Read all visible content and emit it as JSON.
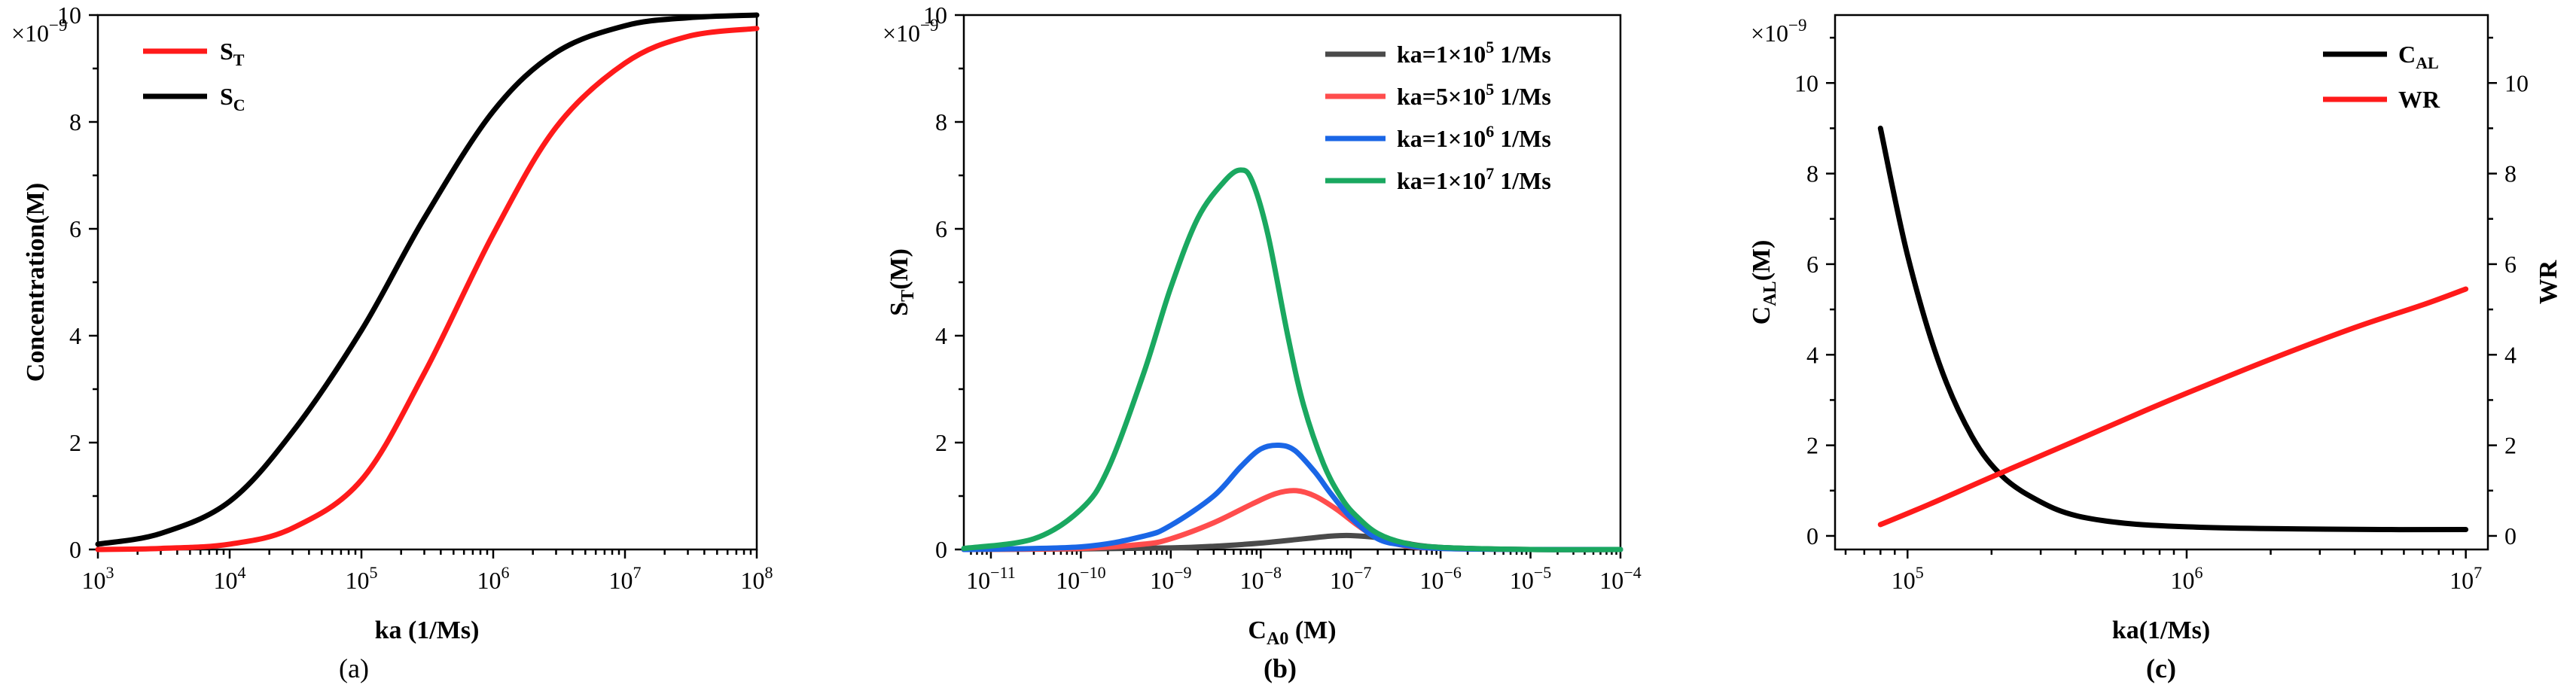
{
  "chart_data": [
    {
      "type": "line",
      "id": "a",
      "subplot_label": "(a)",
      "xlabel": "ka (1/Ms)",
      "ylabel": "Concentration(M)",
      "y_multiplier": "×10",
      "y_multiplier_exp": "−9",
      "xscale": "log",
      "xlim": [
        1000.0,
        100000000.0
      ],
      "ylim": [
        0,
        10
      ],
      "x_ticks": [
        {
          "value": 1000.0,
          "base": "10",
          "exp": "3"
        },
        {
          "value": 10000.0,
          "base": "10",
          "exp": "4"
        },
        {
          "value": 100000.0,
          "base": "10",
          "exp": "5"
        },
        {
          "value": 1000000.0,
          "base": "10",
          "exp": "6"
        },
        {
          "value": 10000000.0,
          "base": "10",
          "exp": "7"
        },
        {
          "value": 100000000.0,
          "base": "10",
          "exp": "8"
        }
      ],
      "y_ticks": [
        "0",
        "2",
        "4",
        "6",
        "8",
        "10"
      ],
      "legend": "top-left",
      "series": [
        {
          "name": "S",
          "sub": "T",
          "color": "#ff1a1a",
          "x": [
            1000.0,
            3000.0,
            10000.0,
            30000.0,
            100000.0,
            300000.0,
            1000000.0,
            3000000.0,
            10000000.0,
            30000000.0,
            100000000.0
          ],
          "y": [
            0,
            0.02,
            0.1,
            0.4,
            1.3,
            3.3,
            5.9,
            7.9,
            9.1,
            9.6,
            9.75
          ]
        },
        {
          "name": "S",
          "sub": "C",
          "color": "#000000",
          "x": [
            1000.0,
            3000.0,
            10000.0,
            30000.0,
            100000.0,
            300000.0,
            1000000.0,
            3000000.0,
            10000000.0,
            30000000.0,
            100000000.0
          ],
          "y": [
            0.1,
            0.3,
            0.9,
            2.2,
            4.1,
            6.2,
            8.2,
            9.3,
            9.8,
            9.95,
            10
          ]
        }
      ]
    },
    {
      "type": "line",
      "id": "b",
      "subplot_label": "(b)",
      "xlabel": "C",
      "xlabel_sub": "A0",
      "xlabel_unit": " (M)",
      "ylabel": "S",
      "ylabel_sub": "T",
      "ylabel_unit": "(M)",
      "y_multiplier": "×10",
      "y_multiplier_exp": "−9",
      "xscale": "log",
      "xlim": [
        5e-12,
        0.0001
      ],
      "ylim": [
        0,
        10
      ],
      "x_ticks": [
        {
          "value": 1e-11,
          "base": "10",
          "exp": "−11"
        },
        {
          "value": 1e-10,
          "base": "10",
          "exp": "−10"
        },
        {
          "value": 1e-09,
          "base": "10",
          "exp": "−9"
        },
        {
          "value": 1e-08,
          "base": "10",
          "exp": "−8"
        },
        {
          "value": 1e-07,
          "base": "10",
          "exp": "−7"
        },
        {
          "value": 1e-06,
          "base": "10",
          "exp": "−6"
        },
        {
          "value": 1e-05,
          "base": "10",
          "exp": "−5"
        },
        {
          "value": 0.0001,
          "base": "10",
          "exp": "−4"
        }
      ],
      "y_ticks": [
        "0",
        "2",
        "4",
        "6",
        "8",
        "10"
      ],
      "legend": "top-right",
      "series": [
        {
          "name": "ka=1×10",
          "exp": "5",
          "unit": " 1/Ms",
          "color": "#4a4a4a",
          "x": [
            5e-12,
            1e-10,
            1e-09,
            3e-09,
            1e-08,
            3e-08,
            6e-08,
            1e-07,
            2e-07,
            4e-07,
            1e-06,
            1e-05,
            0.0001
          ],
          "y": [
            0,
            0.01,
            0.03,
            0.06,
            0.12,
            0.2,
            0.25,
            0.26,
            0.22,
            0.12,
            0.04,
            0,
            0
          ]
        },
        {
          "name": "ka=5×10",
          "exp": "5",
          "unit": " 1/Ms",
          "color": "#ff4d4d",
          "x": [
            5e-12,
            1e-10,
            5e-10,
            1e-09,
            3e-09,
            8e-09,
            1.5e-08,
            2.5e-08,
            4e-08,
            7e-08,
            1.2e-07,
            2e-07,
            4e-07,
            1e-06,
            1e-05,
            0.0001
          ],
          "y": [
            0,
            0.02,
            0.1,
            0.2,
            0.5,
            0.85,
            1.05,
            1.1,
            1.0,
            0.75,
            0.45,
            0.22,
            0.07,
            0.02,
            0,
            0
          ]
        },
        {
          "name": "ka=1×10",
          "exp": "6",
          "unit": " 1/Ms",
          "color": "#1a66e6",
          "x": [
            5e-12,
            1e-10,
            5e-10,
            1e-09,
            3e-09,
            6e-09,
            1e-08,
            1.6e-08,
            2.4e-08,
            4e-08,
            6e-08,
            1e-07,
            2e-07,
            4e-07,
            1e-06,
            1e-05,
            0.0001
          ],
          "y": [
            0,
            0.05,
            0.25,
            0.45,
            1.0,
            1.55,
            1.88,
            1.95,
            1.85,
            1.45,
            1.05,
            0.6,
            0.2,
            0.08,
            0.02,
            0,
            0
          ]
        },
        {
          "name": "ka=1×10",
          "exp": "7",
          "unit": " 1/Ms",
          "color": "#1aa860",
          "x": [
            5e-12,
            3e-11,
            1e-10,
            2e-10,
            5e-10,
            1e-09,
            2e-09,
            4e-09,
            6e-09,
            8e-09,
            1.2e-08,
            2e-08,
            3e-08,
            5e-08,
            8e-08,
            1.2e-07,
            2e-07,
            4e-07,
            1e-06,
            1e-05,
            0.0001
          ],
          "y": [
            0.02,
            0.2,
            0.75,
            1.5,
            3.3,
            4.9,
            6.2,
            6.9,
            7.1,
            6.9,
            5.9,
            4.0,
            2.7,
            1.6,
            0.95,
            0.6,
            0.3,
            0.12,
            0.04,
            0,
            0
          ]
        }
      ]
    },
    {
      "type": "line",
      "id": "c",
      "subplot_label": "(c)",
      "xlabel": "ka(1/Ms)",
      "ylabel_left": "C",
      "ylabel_left_sub": "AL",
      "ylabel_left_unit": "(M)",
      "ylabel_right": "WR",
      "y_multiplier": "×10",
      "y_multiplier_exp": "−9",
      "xscale": "log",
      "xlim": [
        55000.0,
        12000000.0
      ],
      "ylim_left": [
        -0.3,
        11.5
      ],
      "ylim_right": [
        -0.3,
        11.5
      ],
      "x_ticks": [
        {
          "value": 100000.0,
          "base": "10",
          "exp": "5"
        },
        {
          "value": 1000000.0,
          "base": "10",
          "exp": "6"
        },
        {
          "value": 10000000.0,
          "base": "10",
          "exp": "7"
        }
      ],
      "y_ticks_left": [
        "0",
        "2",
        "4",
        "6",
        "8",
        "10"
      ],
      "y_ticks_right": [
        "0",
        "2",
        "4",
        "6",
        "8",
        "10"
      ],
      "legend": "top-right",
      "series": [
        {
          "name": "C",
          "sub": "AL",
          "axis": "left",
          "color": "#000000",
          "x": [
            80000.0,
            100000.0,
            130000.0,
            170000.0,
            220000.0,
            300000.0,
            400000.0,
            600000.0,
            1000000.0,
            2000000.0,
            5000000.0,
            10000000.0
          ],
          "y": [
            9.0,
            6.2,
            3.8,
            2.2,
            1.3,
            0.75,
            0.45,
            0.28,
            0.2,
            0.16,
            0.14,
            0.14
          ]
        },
        {
          "name": "WR",
          "axis": "right",
          "color": "#ff1a1a",
          "x": [
            80000.0,
            120000.0,
            200000.0,
            400000.0,
            700000.0,
            1000000.0,
            2000000.0,
            4000000.0,
            7000000.0,
            10000000.0
          ],
          "y": [
            0.25,
            0.7,
            1.3,
            2.1,
            2.75,
            3.15,
            3.9,
            4.6,
            5.1,
            5.45
          ]
        }
      ]
    }
  ]
}
